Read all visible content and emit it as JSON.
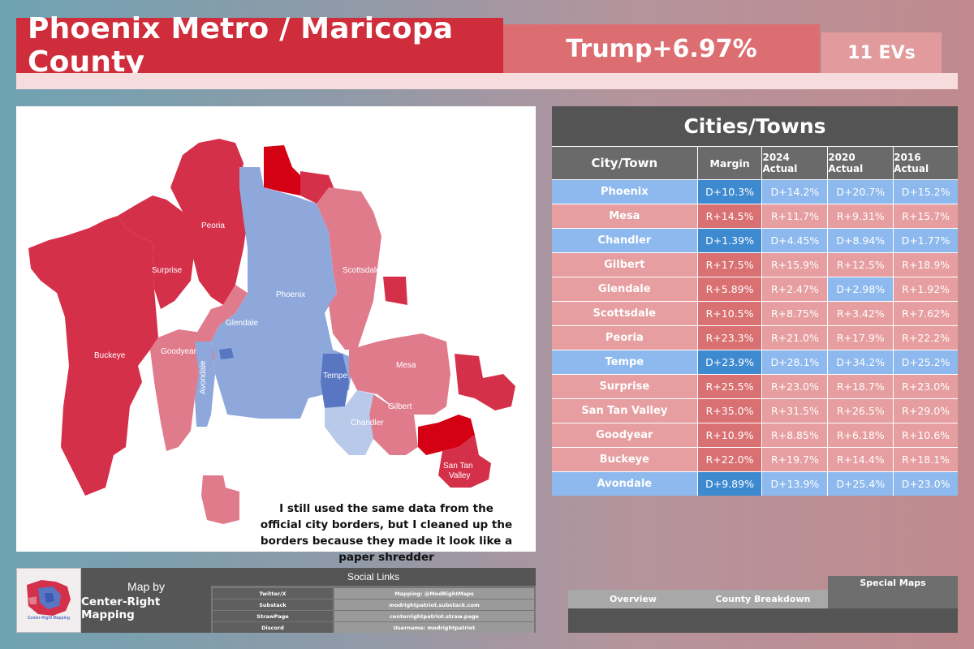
{
  "header": {
    "title": "Phoenix Metro / Maricopa County",
    "margin": "Trump+6.97%",
    "evs": "11 EVs"
  },
  "map": {
    "note": "I still used the same data from the official city borders, but I cleaned up the borders because they made it look like a paper shredder",
    "labels": {
      "peoria": "Peoria",
      "surprise": "Surprise",
      "phoenix": "Phoenix",
      "scottsdale": "Scottsdale",
      "glendale": "Glendale",
      "goodyear": "Goodyear",
      "buckeye": "Buckeye",
      "avondale": "Avondale",
      "tempe": "Tempe",
      "mesa": "Mesa",
      "gilbert": "Gilbert",
      "chandler": "Chandler",
      "santan1": "San Tan",
      "santan2": "Valley"
    },
    "colors": {
      "solid_r": "#d5304a",
      "strong_r": "#d40014",
      "lean_r": "#e07b8c",
      "light_r": "#eda6b1",
      "solid_d": "#8fa8db",
      "strong_d": "#5876c2",
      "light_d": "#b8c9ea"
    }
  },
  "table": {
    "title": "Cities/Towns",
    "headers": [
      "City/Town",
      "Margin",
      "2024 Actual",
      "2020 Actual",
      "2016 Actual"
    ],
    "rows": [
      {
        "city": "Phoenix",
        "margin": "D+10.3%",
        "y2024": "D+14.2%",
        "y2020": "D+20.7%",
        "y2016": "D+15.2%"
      },
      {
        "city": "Mesa",
        "margin": "R+14.5%",
        "y2024": "R+11.7%",
        "y2020": "R+9.31%",
        "y2016": "R+15.7%"
      },
      {
        "city": "Chandler",
        "margin": "D+1.39%",
        "y2024": "D+4.45%",
        "y2020": "D+8.94%",
        "y2016": "D+1.77%"
      },
      {
        "city": "Gilbert",
        "margin": "R+17.5%",
        "y2024": "R+15.9%",
        "y2020": "R+12.5%",
        "y2016": "R+18.9%"
      },
      {
        "city": "Glendale",
        "margin": "R+5.89%",
        "y2024": "R+2.47%",
        "y2020": "D+2.98%",
        "y2016": "R+1.92%"
      },
      {
        "city": "Scottsdale",
        "margin": "R+10.5%",
        "y2024": "R+8.75%",
        "y2020": "R+3.42%",
        "y2016": "R+7.62%"
      },
      {
        "city": "Peoria",
        "margin": "R+23.3%",
        "y2024": "R+21.0%",
        "y2020": "R+17.9%",
        "y2016": "R+22.2%"
      },
      {
        "city": "Tempe",
        "margin": "D+23.9%",
        "y2024": "D+28.1%",
        "y2020": "D+34.2%",
        "y2016": "D+25.2%"
      },
      {
        "city": "Surprise",
        "margin": "R+25.5%",
        "y2024": "R+23.0%",
        "y2020": "R+18.7%",
        "y2016": "R+23.0%"
      },
      {
        "city": "San Tan Valley",
        "margin": "R+35.0%",
        "y2024": "R+31.5%",
        "y2020": "R+26.5%",
        "y2016": "R+29.0%"
      },
      {
        "city": "Goodyear",
        "margin": "R+10.9%",
        "y2024": "R+8.85%",
        "y2020": "R+6.18%",
        "y2016": "R+10.6%"
      },
      {
        "city": "Buckeye",
        "margin": "R+22.0%",
        "y2024": "R+19.7%",
        "y2020": "R+14.4%",
        "y2016": "R+18.1%"
      },
      {
        "city": "Avondale",
        "margin": "D+9.89%",
        "y2024": "D+13.9%",
        "y2020": "D+25.4%",
        "y2016": "D+23.0%"
      }
    ],
    "colors": {
      "d_name": "#8db9ee",
      "d_margin": "#3e8ad0",
      "d_cell": "#8db9ee",
      "r_name": "#e69ea0",
      "r_margin": "#d97072",
      "r_cell": "#e69ea0"
    }
  },
  "credits": {
    "map_by": "Map by",
    "author": "Center-Right Mapping",
    "logo_text": "Center-Right Mapping"
  },
  "social": {
    "title": "Social Links",
    "links": [
      {
        "label": "Twitter/X",
        "value": "Mapping: @ModRightMaps"
      },
      {
        "label": "Substack",
        "value": "modrightpatriot.substack.com"
      },
      {
        "label": "StrawPage",
        "value": "centerrightpatriot.straw.page"
      },
      {
        "label": "Discord",
        "value": "Username: modrightpatriot"
      }
    ]
  },
  "nav": {
    "overview": "Overview",
    "county": "County Breakdown",
    "special": "Special Maps"
  }
}
